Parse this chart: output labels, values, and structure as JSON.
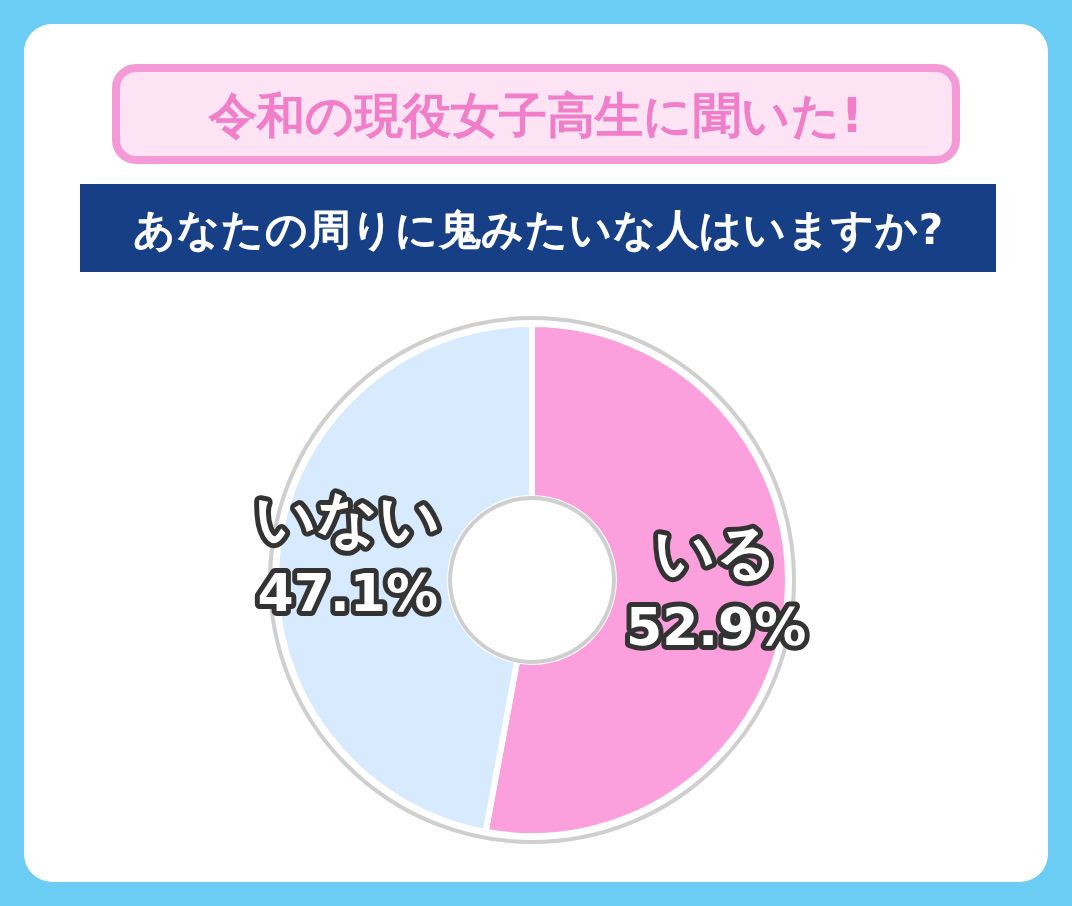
{
  "chart_data": {
    "type": "donut",
    "title": "令和の現役女子高生に聞いた!",
    "subtitle": "あなたの周りに鬼みたいな人はいますか?",
    "categories": [
      "いる",
      "いない"
    ],
    "values": [
      52.9,
      47.1
    ],
    "colors": [
      "#fba0dc",
      "#d8eafd"
    ],
    "value_labels": [
      "52.9%",
      "47.1%"
    ]
  }
}
